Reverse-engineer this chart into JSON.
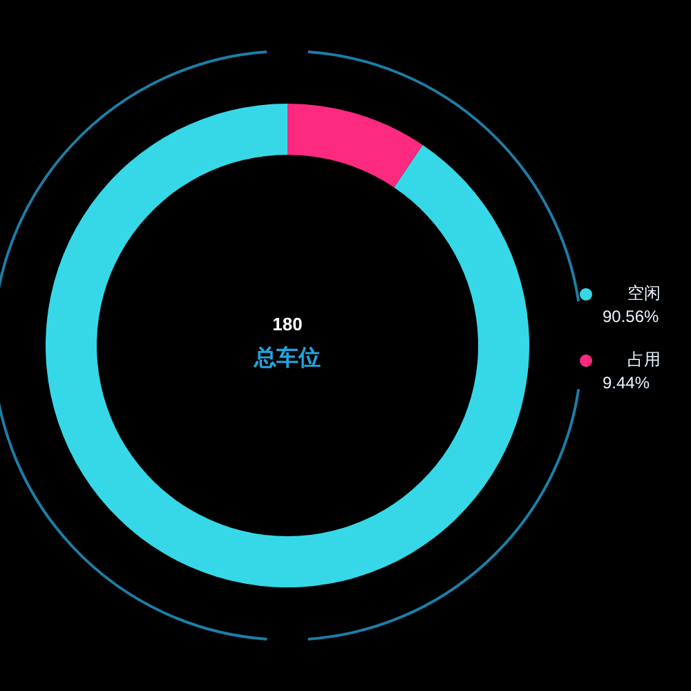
{
  "chart_data": {
    "type": "donut",
    "categories": [
      "空闲",
      "占用"
    ],
    "values": [
      90.56,
      9.44
    ],
    "colors": [
      "#36d8e8",
      "#fc2a7e"
    ],
    "value_labels": [
      "90.56%",
      "9.44%"
    ],
    "legend": "right",
    "annotations": [
      "180",
      "总车位"
    ]
  }
}
